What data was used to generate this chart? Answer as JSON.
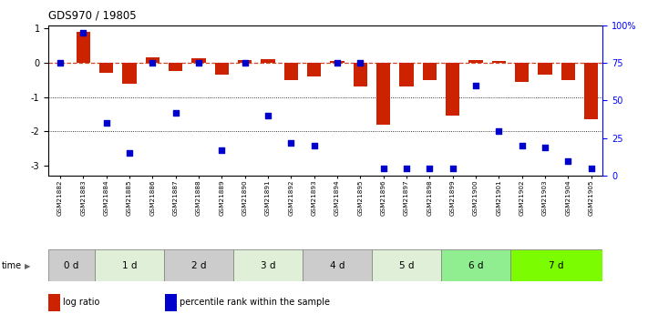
{
  "title": "GDS970 / 19805",
  "samples": [
    "GSM21882",
    "GSM21883",
    "GSM21884",
    "GSM21885",
    "GSM21886",
    "GSM21887",
    "GSM21888",
    "GSM21889",
    "GSM21890",
    "GSM21891",
    "GSM21892",
    "GSM21893",
    "GSM21894",
    "GSM21895",
    "GSM21896",
    "GSM21897",
    "GSM21898",
    "GSM21899",
    "GSM21900",
    "GSM21901",
    "GSM21902",
    "GSM21903",
    "GSM21904",
    "GSM21905"
  ],
  "log_ratio": [
    0.0,
    0.9,
    -0.3,
    -0.6,
    0.15,
    -0.25,
    0.12,
    -0.35,
    0.08,
    0.1,
    -0.5,
    -0.4,
    0.05,
    -0.7,
    -1.8,
    -0.7,
    -0.5,
    -1.55,
    0.07,
    0.05,
    -0.55,
    -0.35,
    -0.5,
    -1.65
  ],
  "percentile": [
    75,
    95,
    35,
    15,
    75,
    42,
    75,
    17,
    75,
    40,
    22,
    20,
    75,
    75,
    5,
    5,
    5,
    5,
    60,
    30,
    20,
    19,
    10,
    5
  ],
  "time_groups": [
    {
      "label": "0 d",
      "start": 0,
      "end": 2,
      "color": "#cccccc"
    },
    {
      "label": "1 d",
      "start": 2,
      "end": 5,
      "color": "#e0f0d8"
    },
    {
      "label": "2 d",
      "start": 5,
      "end": 8,
      "color": "#cccccc"
    },
    {
      "label": "3 d",
      "start": 8,
      "end": 11,
      "color": "#e0f0d8"
    },
    {
      "label": "4 d",
      "start": 11,
      "end": 14,
      "color": "#cccccc"
    },
    {
      "label": "5 d",
      "start": 14,
      "end": 17,
      "color": "#e0f0d8"
    },
    {
      "label": "6 d",
      "start": 17,
      "end": 20,
      "color": "#90ee90"
    },
    {
      "label": "7 d",
      "start": 20,
      "end": 24,
      "color": "#7cfc00"
    }
  ],
  "bar_color": "#cc2200",
  "dot_color": "#0000cc",
  "ylim_left": [
    -3.3,
    1.1
  ],
  "ylim_right": [
    0,
    100
  ],
  "yticks_left": [
    1,
    0,
    -1,
    -2,
    -3
  ],
  "yticks_right": [
    0,
    25,
    50,
    75,
    100
  ],
  "ytick_labels_right": [
    "0",
    "25",
    "50",
    "75",
    "100%"
  ],
  "hlines": [
    -1,
    -2
  ],
  "legend_items": [
    {
      "label": "log ratio",
      "color": "#cc2200"
    },
    {
      "label": "percentile rank within the sample",
      "color": "#0000cc"
    }
  ]
}
